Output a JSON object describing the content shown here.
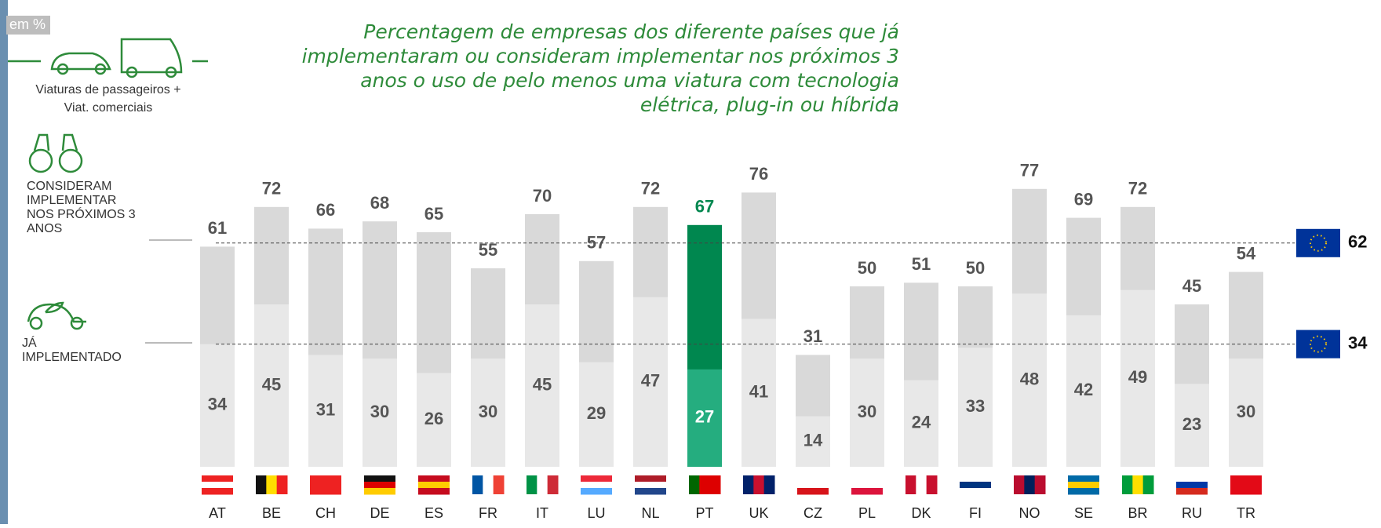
{
  "unit_label": "em %",
  "vehicle_label": [
    "Viaturas de passageiros +",
    "Viat. comerciais"
  ],
  "chart_data": {
    "type": "bar",
    "title": [
      "Percentagem de empresas dos diferente países que já",
      "implementaram ou consideram implementar nos próximos 3",
      "anos o uso de pelo menos uma viatura com tecnologia",
      "elétrica, plug-in ou híbrida"
    ],
    "categories": [
      "AT",
      "BE",
      "CH",
      "DE",
      "ES",
      "FR",
      "IT",
      "LU",
      "NL",
      "PT",
      "UK",
      "CZ",
      "PL",
      "DK",
      "FI",
      "NO",
      "SE",
      "BR",
      "RU",
      "TR"
    ],
    "series": [
      {
        "name": [
          "CONSIDERAM",
          "IMPLEMENTAR",
          "NOS PRÓXIMOS 3",
          "ANOS"
        ],
        "color": "#d9d9d9",
        "highlight_color": "#00874f",
        "values": [
          61,
          72,
          66,
          68,
          65,
          55,
          70,
          57,
          72,
          67,
          76,
          31,
          50,
          51,
          50,
          77,
          69,
          72,
          45,
          54
        ]
      },
      {
        "name": [
          "JÁ",
          "IMPLEMENTADO"
        ],
        "color": "#e8e8e8",
        "highlight_color": "#25ad7f",
        "values": [
          34,
          45,
          31,
          30,
          26,
          30,
          45,
          29,
          47,
          27,
          41,
          14,
          30,
          24,
          33,
          48,
          42,
          49,
          23,
          30
        ]
      }
    ],
    "highlight": "PT",
    "highlight_label_color": "#00874f",
    "reference_lines": [
      {
        "value": 62,
        "series": 0
      },
      {
        "value": 34,
        "series": 1
      }
    ]
  }
}
